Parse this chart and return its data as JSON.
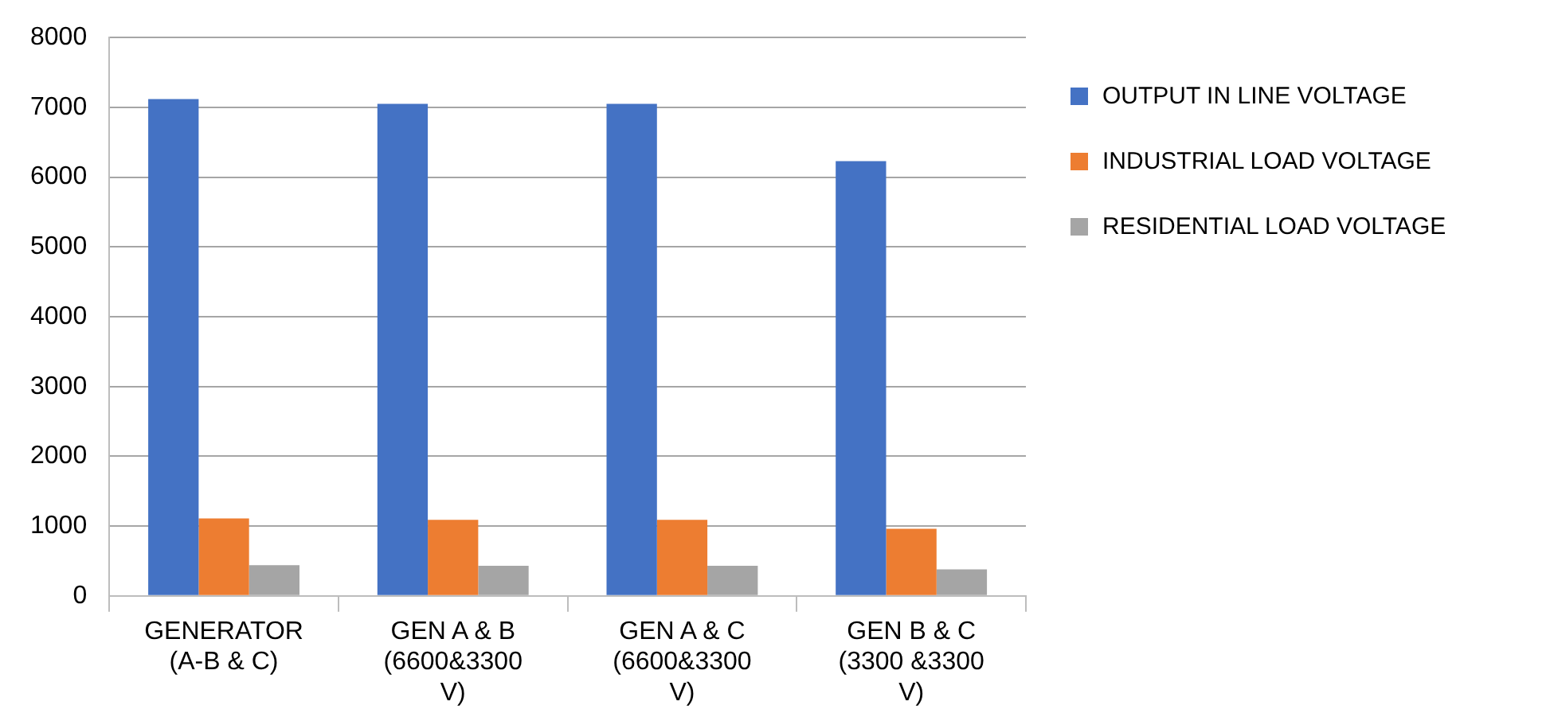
{
  "chart_data": {
    "type": "bar",
    "categories": [
      "GENERATOR (A-B & C)",
      "GEN A & B (6600&3300 V)",
      "GEN A & C (6600&3300 V)",
      "GEN B & C (3300 &3300 V)"
    ],
    "series": [
      {
        "name": "OUTPUT IN LINE VOLTAGE",
        "color": "#4472c4",
        "values": [
          7120,
          7050,
          7050,
          6230
        ]
      },
      {
        "name": "INDUSTRIAL LOAD VOLTAGE",
        "color": "#ed7d31",
        "values": [
          1110,
          1090,
          1090,
          960
        ]
      },
      {
        "name": "RESIDENTIAL LOAD VOLTAGE",
        "color": "#a5a5a5",
        "values": [
          440,
          430,
          430,
          380
        ]
      }
    ],
    "ylim": [
      0,
      8000
    ],
    "yticks": [
      0,
      1000,
      2000,
      3000,
      4000,
      5000,
      6000,
      7000,
      8000
    ],
    "grid": "y",
    "legend": "right"
  }
}
